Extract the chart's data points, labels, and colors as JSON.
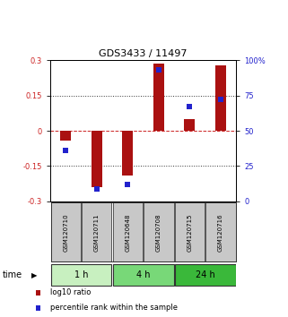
{
  "title": "GDS3433 / 11497",
  "samples": [
    "GSM120710",
    "GSM120711",
    "GSM120648",
    "GSM120708",
    "GSM120715",
    "GSM120716"
  ],
  "log10_ratio": [
    -0.04,
    -0.24,
    -0.19,
    0.285,
    0.05,
    0.28
  ],
  "percentile_rank": [
    0.36,
    0.09,
    0.12,
    0.93,
    0.67,
    0.72
  ],
  "groups": [
    {
      "label": "1 h",
      "indices": [
        0,
        1
      ],
      "color": "#c8f0c0"
    },
    {
      "label": "4 h",
      "indices": [
        2,
        3
      ],
      "color": "#78d878"
    },
    {
      "label": "24 h",
      "indices": [
        4,
        5
      ],
      "color": "#3ab83a"
    }
  ],
  "ylim": [
    -0.3,
    0.3
  ],
  "yticks_left": [
    -0.3,
    -0.15,
    0,
    0.15,
    0.3
  ],
  "ytick_labels_left": [
    "-0.3",
    "-0.15",
    "0",
    "0.15",
    "0.3"
  ],
  "right_ticks_y": [
    -0.3,
    -0.15,
    0.0,
    0.15,
    0.3
  ],
  "right_tick_labels": [
    "0",
    "25",
    "50",
    "75",
    "100%"
  ],
  "bar_color": "#aa1111",
  "dot_color": "#2222cc",
  "hline_color": "#cc2222",
  "dotted_color": "#333333",
  "left_label_color": "#cc2222",
  "right_label_color": "#2222cc",
  "bar_width": 0.35,
  "dot_markersize": 4,
  "sample_box_color": "#c8c8c8",
  "title_fontsize": 8,
  "tick_fontsize": 6,
  "sample_fontsize": 5,
  "time_fontsize": 7,
  "legend_fontsize": 6
}
